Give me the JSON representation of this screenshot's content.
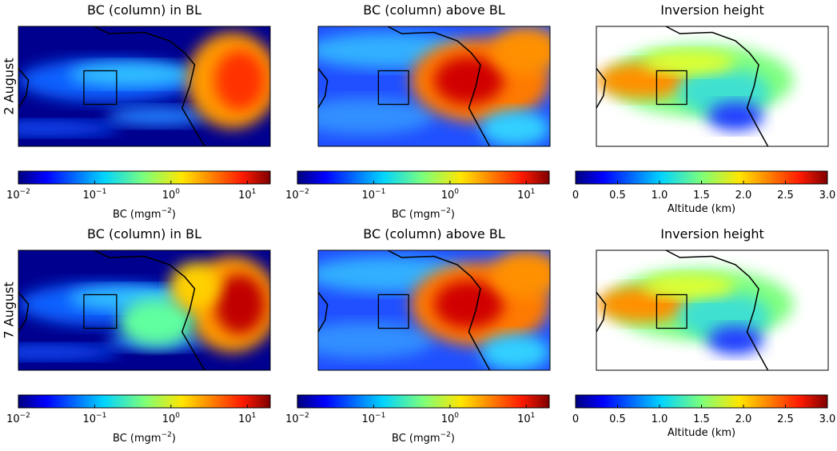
{
  "rows": [
    {
      "label": "2 August",
      "panels": [
        {
          "title": "BC (column) in BL",
          "colorbar": {
            "colormap": "jet",
            "scale": "log",
            "lim": [
              0.01,
              20
            ],
            "ticks": [
              {
                "value": 0.01,
                "label": {
                  "base": "10",
                  "exponent": "−2"
                }
              },
              {
                "value": 0.1,
                "label": {
                  "base": "10",
                  "exponent": "−1"
                }
              },
              {
                "value": 1,
                "label": {
                  "base": "10",
                  "exponent": "0"
                }
              },
              {
                "value": 10,
                "label": {
                  "base": "10",
                  "exponent": "1"
                }
              }
            ],
            "label": {
              "text": "BC (mgm",
              "exponent": "−2",
              "close": ")"
            }
          }
        },
        {
          "title": "BC (column) above BL",
          "colorbar": {
            "colormap": "jet",
            "scale": "log",
            "lim": [
              0.01,
              20
            ],
            "ticks": [
              {
                "value": 0.01,
                "label": {
                  "base": "10",
                  "exponent": "−2"
                }
              },
              {
                "value": 0.1,
                "label": {
                  "base": "10",
                  "exponent": "−1"
                }
              },
              {
                "value": 1,
                "label": {
                  "base": "10",
                  "exponent": "0"
                }
              },
              {
                "value": 10,
                "label": {
                  "base": "10",
                  "exponent": "1"
                }
              }
            ],
            "label": {
              "text": "BC (mgm",
              "exponent": "−2",
              "close": ")"
            }
          }
        },
        {
          "title": "Inversion height",
          "colorbar": {
            "colormap": "jet",
            "scale": "linear",
            "lim": [
              0,
              3
            ],
            "ticks": [
              0,
              0.5,
              {
                "value": 1,
                "label": "1.0"
              },
              1.5,
              {
                "value": 2,
                "label": "2.0"
              },
              2.5,
              {
                "value": 3,
                "label": "3.0"
              }
            ],
            "label": {
              "text": "Altitude (km)"
            }
          }
        }
      ]
    },
    {
      "label": "7 August",
      "panels": [
        {
          "title": "BC (column) in BL",
          "colorbar": {
            "colormap": "jet",
            "scale": "log",
            "lim": [
              0.01,
              20
            ],
            "ticks": [
              {
                "value": 0.01,
                "label": {
                  "base": "10",
                  "exponent": "−2"
                }
              },
              {
                "value": 0.1,
                "label": {
                  "base": "10",
                  "exponent": "−1"
                }
              },
              {
                "value": 1,
                "label": {
                  "base": "10",
                  "exponent": "0"
                }
              },
              {
                "value": 10,
                "label": {
                  "base": "10",
                  "exponent": "1"
                }
              }
            ],
            "label": {
              "text": "BC (mgm",
              "exponent": "−2",
              "close": ")"
            }
          }
        },
        {
          "title": "BC (column) above BL",
          "colorbar": {
            "colormap": "jet",
            "scale": "log",
            "lim": [
              0.01,
              20
            ],
            "ticks": [
              {
                "value": 0.01,
                "label": {
                  "base": "10",
                  "exponent": "−2"
                }
              },
              {
                "value": 0.1,
                "label": {
                  "base": "10",
                  "exponent": "−1"
                }
              },
              {
                "value": 1,
                "label": {
                  "base": "10",
                  "exponent": "0"
                }
              },
              {
                "value": 10,
                "label": {
                  "base": "10",
                  "exponent": "1"
                }
              }
            ],
            "label": {
              "text": "BC (mgm",
              "exponent": "−2",
              "close": ")"
            }
          }
        },
        {
          "title": "Inversion height",
          "colorbar": {
            "colormap": "jet",
            "scale": "linear",
            "lim": [
              0,
              3
            ],
            "ticks": [
              0,
              0.5,
              {
                "value": 1,
                "label": "1.0"
              },
              1.5,
              {
                "value": 2,
                "label": "2.0"
              },
              2.5,
              {
                "value": 3,
                "label": "3.0"
              }
            ],
            "label": {
              "text": "Altitude (km)"
            }
          }
        }
      ]
    }
  ]
}
